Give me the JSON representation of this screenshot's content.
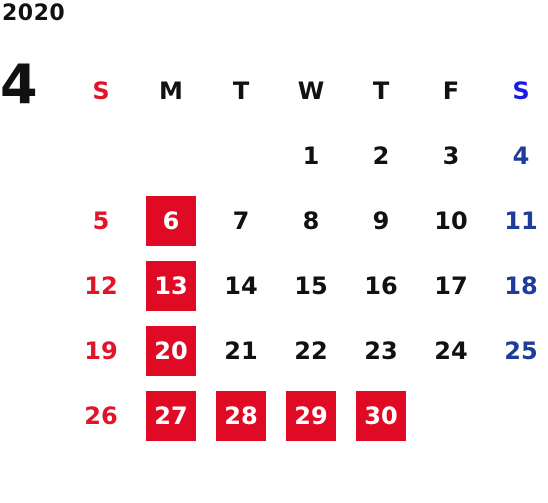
{
  "year": "2020",
  "month": "4",
  "weekdays": [
    "S",
    "M",
    "T",
    "W",
    "T",
    "F",
    "S"
  ],
  "weeks": [
    [
      "",
      "",
      "",
      "1",
      "2",
      "3",
      "4"
    ],
    [
      "5",
      "6",
      "7",
      "8",
      "9",
      "10",
      "11"
    ],
    [
      "12",
      "13",
      "14",
      "15",
      "16",
      "17",
      "18"
    ],
    [
      "19",
      "20",
      "21",
      "22",
      "23",
      "24",
      "25"
    ],
    [
      "26",
      "27",
      "28",
      "29",
      "30",
      "",
      ""
    ]
  ],
  "highlighted_dates": [
    "6",
    "13",
    "20",
    "27",
    "28",
    "29",
    "30"
  ],
  "colors": {
    "sunday": "#e1152a",
    "saturday": "#1e3d9b",
    "saturday_header": "#1a1ae6",
    "highlight_bg": "#e00a25",
    "highlight_text": "#ffffff",
    "default_text": "#111111"
  }
}
